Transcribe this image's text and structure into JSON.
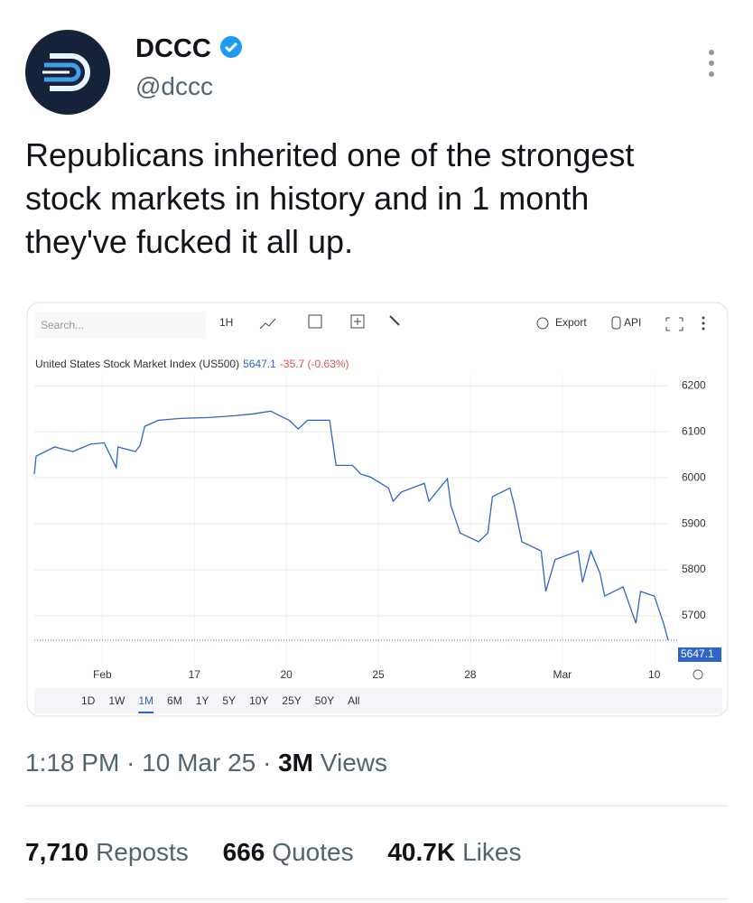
{
  "author": {
    "name": "DCCC",
    "handle": "@dccc"
  },
  "tweet": {
    "lines": [
      "Republicans inherited one of the strongest",
      "stock markets in history and in 1 month",
      "they've fucked it all up."
    ]
  },
  "meta": {
    "time": "1:18 PM · 10 Mar 25 · ",
    "views_count": "3M",
    "views_word": "Views"
  },
  "stats": [
    {
      "count": "7,710",
      "label": "Reposts"
    },
    {
      "count": "666",
      "label": "Quotes"
    },
    {
      "count": "40.7K",
      "label": "Likes"
    }
  ],
  "toolbar": {
    "search": "Search...",
    "interval": "1H",
    "export": "Export",
    "api": "API",
    "ranges": [
      "1D",
      "1W",
      "1M",
      "6M",
      "1Y",
      "5Y",
      "10Y",
      "25Y",
      "50Y",
      "All"
    ],
    "active_range": 2
  },
  "chart_data": {
    "type": "line",
    "title": "United States Stock Market Index (US500)",
    "last": "5647.1",
    "change": "-35.7 (-0.63%)",
    "price_tag": "5647.1",
    "x": [
      -0.74,
      -0.72,
      -0.52,
      -0.32,
      -0.13,
      0.02,
      0.15,
      0.17,
      0.36,
      0.41,
      0.46,
      0.61,
      0.85,
      1.15,
      1.44,
      1.64,
      1.83,
      1.93,
      2.03,
      2.13,
      2.23,
      2.47,
      2.54,
      2.72,
      2.81,
      2.91,
      3.11,
      3.16,
      3.25,
      3.5,
      3.55,
      3.75,
      3.79,
      3.89,
      4.09,
      4.19,
      4.24,
      4.43,
      4.48,
      4.56,
      4.77,
      4.82,
      4.92,
      5.17,
      5.22,
      5.31,
      5.41,
      5.46,
      5.66,
      5.8,
      5.85,
      6.0,
      6.1,
      6.15
    ],
    "series": [
      {
        "name": "US500",
        "color": "#2f64c8",
        "values": [
          6008,
          6047,
          6067,
          6057,
          6073,
          6076,
          6022,
          6067,
          6057,
          6071,
          6112,
          6125,
          6129,
          6131,
          6135,
          6139,
          6145,
          6135,
          6125,
          6106,
          6125,
          6125,
          6027,
          6027,
          6008,
          6002,
          5978,
          5949,
          5969,
          5988,
          5949,
          5998,
          5939,
          5880,
          5861,
          5880,
          5959,
          5978,
          5939,
          5861,
          5841,
          5753,
          5822,
          5841,
          5773,
          5841,
          5792,
          5743,
          5763,
          5684,
          5753,
          5743,
          5684,
          5647.1
        ]
      }
    ],
    "xlim": [
      -0.74,
      6.15
    ],
    "xticks": [
      {
        "value": 0,
        "label": "Feb"
      },
      {
        "value": 1,
        "label": "17"
      },
      {
        "value": 2,
        "label": "20"
      },
      {
        "value": 3,
        "label": "25"
      },
      {
        "value": 4,
        "label": "28"
      },
      {
        "value": 5,
        "label": "Mar"
      },
      {
        "value": 6,
        "label": "10"
      }
    ],
    "ylim": [
      5596,
      6224
    ],
    "yticks": [
      5700,
      5800,
      5900,
      6000,
      6100,
      6200
    ],
    "grid": true
  }
}
